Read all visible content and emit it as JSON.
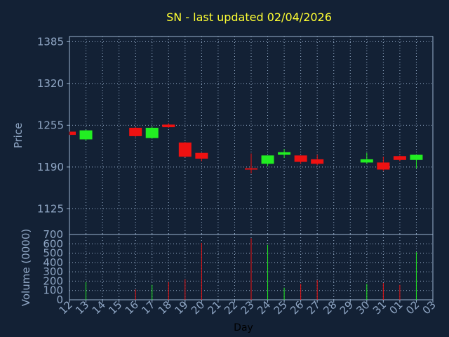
{
  "chart_data": {
    "type": "candlestick",
    "title": "SN - last updated 02/04/2026",
    "xlabel": "Day",
    "price_label": "Price",
    "volume_label": "Volume (0000)",
    "x_categories": [
      "12",
      "13",
      "14",
      "15",
      "16",
      "17",
      "18",
      "19",
      "20",
      "21",
      "22",
      "23",
      "24",
      "25",
      "26",
      "27",
      "28",
      "29",
      "30",
      "31",
      "01",
      "02",
      "03"
    ],
    "price_ticks": [
      "1385",
      "1320",
      "1255",
      "1190",
      "1125"
    ],
    "price_ylim": [
      1085,
      1393
    ],
    "volume_ticks": [
      "700",
      "600",
      "500",
      "400",
      "300",
      "200",
      "100",
      "0"
    ],
    "volume_ylim": [
      0,
      700
    ],
    "grid": true,
    "colors": {
      "background": "#132135",
      "plot_border": "#9bb3cf",
      "grid": "#9bb3cf",
      "up": "#22ee22",
      "down": "#ee1111",
      "title": "#ffff33",
      "axis_text": "#8fa6c4"
    },
    "candles": [
      {
        "day": "12",
        "open": 1245,
        "close": 1240,
        "high": 1245,
        "low": 1240,
        "volume": 0
      },
      {
        "day": "13",
        "open": 1233,
        "close": 1247,
        "high": 1248,
        "low": 1231,
        "volume": 190
      },
      {
        "day": "16",
        "open": 1251,
        "close": 1238,
        "high": 1252,
        "low": 1237,
        "volume": 110
      },
      {
        "day": "17",
        "open": 1235,
        "close": 1251,
        "high": 1253,
        "low": 1234,
        "volume": 160
      },
      {
        "day": "18",
        "open": 1256,
        "close": 1252,
        "high": 1258,
        "low": 1251,
        "volume": 190
      },
      {
        "day": "19",
        "open": 1228,
        "close": 1206,
        "high": 1229,
        "low": 1205,
        "volume": 220
      },
      {
        "day": "20",
        "open": 1212,
        "close": 1203,
        "high": 1212,
        "low": 1199,
        "volume": 610
      },
      {
        "day": "23",
        "open": 1188,
        "close": 1186,
        "high": 1211,
        "low": 1180,
        "volume": 660
      },
      {
        "day": "24",
        "open": 1195,
        "close": 1208,
        "high": 1208,
        "low": 1191,
        "volume": 590
      },
      {
        "day": "25",
        "open": 1209,
        "close": 1213,
        "high": 1218,
        "low": 1204,
        "volume": 130
      },
      {
        "day": "26",
        "open": 1208,
        "close": 1198,
        "high": 1208,
        "low": 1195,
        "volume": 170
      },
      {
        "day": "27",
        "open": 1202,
        "close": 1195,
        "high": 1209,
        "low": 1193,
        "volume": 210
      },
      {
        "day": "30",
        "open": 1197,
        "close": 1202,
        "high": 1212,
        "low": 1195,
        "volume": 170
      },
      {
        "day": "31",
        "open": 1197,
        "close": 1186,
        "high": 1206,
        "low": 1184,
        "volume": 180
      },
      {
        "day": "01",
        "open": 1207,
        "close": 1201,
        "high": 1208,
        "low": 1199,
        "volume": 160
      },
      {
        "day": "02",
        "open": 1201,
        "close": 1209,
        "high": 1209,
        "low": 1188,
        "volume": 510
      }
    ]
  }
}
